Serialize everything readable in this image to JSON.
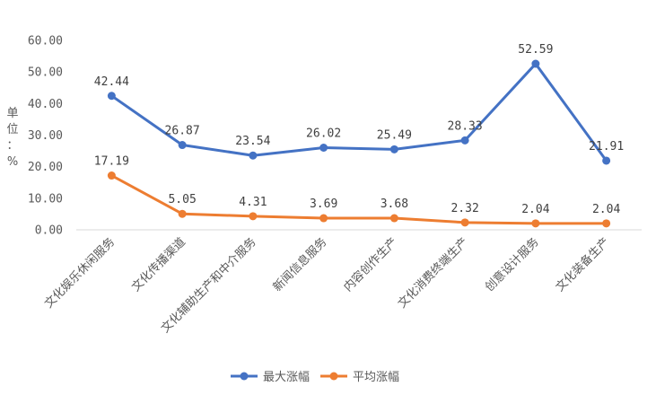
{
  "chart_data": {
    "type": "line",
    "title": "",
    "xlabel": "",
    "ylabel": "单位：%",
    "ylim": [
      0,
      60
    ],
    "yticks": [
      "0.00",
      "10.00",
      "20.00",
      "30.00",
      "40.00",
      "50.00",
      "60.00"
    ],
    "grid": false,
    "legend_position": "bottom",
    "categories": [
      "文化娱乐休闲服务",
      "文化传播渠道",
      "文化辅助生产和中介服务",
      "新闻信息服务",
      "内容创作生产",
      "文化消费终端生产",
      "创意设计服务",
      "文化装备生产"
    ],
    "series": [
      {
        "name": "最大涨幅",
        "color": "#4472C4",
        "values": [
          42.44,
          26.87,
          23.54,
          26.02,
          25.49,
          28.33,
          52.59,
          21.91
        ],
        "labels": [
          "42.44",
          "26.87",
          "23.54",
          "26.02",
          "25.49",
          "28.33",
          "52.59",
          "21.91"
        ]
      },
      {
        "name": "平均涨幅",
        "color": "#ED7D31",
        "values": [
          17.19,
          5.05,
          4.31,
          3.69,
          3.68,
          2.32,
          2.04,
          2.04
        ],
        "labels": [
          "17.19",
          "5.05",
          "4.31",
          "3.69",
          "3.68",
          "2.32",
          "2.04",
          "2.04"
        ]
      }
    ]
  }
}
